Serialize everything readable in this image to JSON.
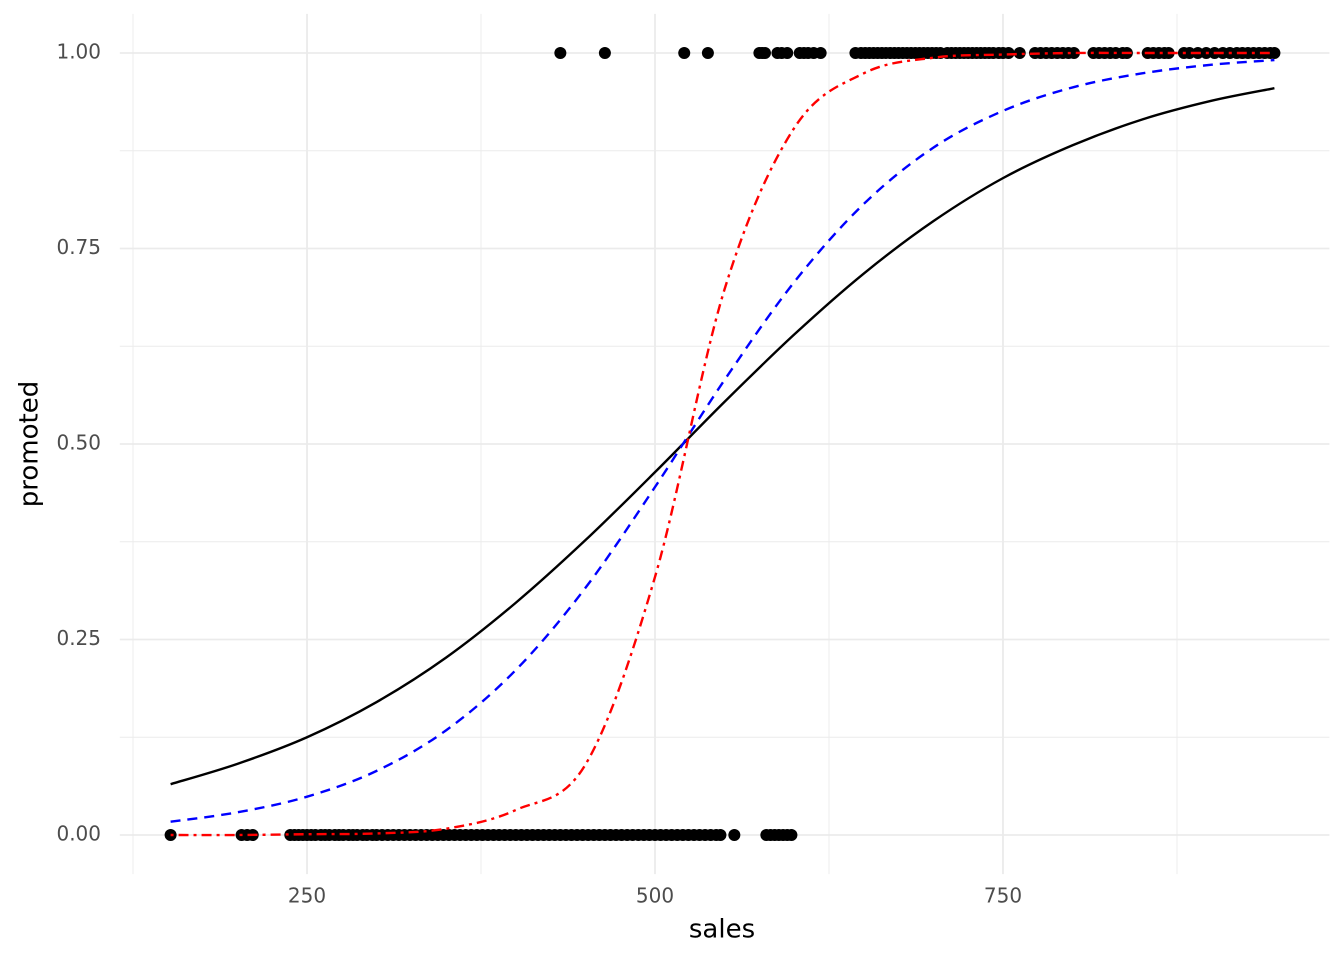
{
  "chart_data": {
    "type": "logistic",
    "x_label": "sales",
    "y_label": "promoted",
    "xlim": [
      115.5,
      984.5
    ],
    "ylim": [
      -0.05,
      1.05
    ],
    "xticks": [
      250,
      500,
      750
    ],
    "xminor": [
      125,
      375,
      625,
      875
    ],
    "yticks": [
      {
        "value": 0,
        "label": "0.00"
      },
      {
        "value": 0.25,
        "label": "0.25"
      },
      {
        "value": 0.5,
        "label": "0.50"
      },
      {
        "value": 0.75,
        "label": "0.75"
      },
      {
        "value": 1,
        "label": "1.00"
      }
    ],
    "yminor": [
      0.125,
      0.375,
      0.625,
      0.875
    ],
    "grid": true,
    "series": [
      {
        "type": "scatter",
        "color": "#000000",
        "x": [
          432,
          464,
          521,
          538,
          575,
          577,
          579,
          588,
          591,
          595,
          604,
          607,
          610,
          614,
          619,
          644,
          648,
          651,
          654,
          657,
          660,
          663,
          666,
          669,
          672,
          675,
          678,
          681,
          684,
          687,
          690,
          693,
          696,
          699,
          702,
          705,
          710,
          713,
          716,
          719,
          722,
          725,
          728,
          731,
          734,
          737,
          740,
          743,
          747,
          750,
          754,
          762,
          773,
          777,
          781,
          785,
          789,
          793,
          797,
          801,
          815,
          819,
          823,
          827,
          831,
          836,
          839,
          854,
          858,
          862,
          866,
          869,
          880,
          884,
          890,
          896,
          902,
          908,
          913,
          918,
          922,
          926,
          930,
          934,
          938,
          942,
          945
        ],
        "y": [
          1,
          1,
          1,
          1,
          1,
          1,
          1,
          1,
          1,
          1,
          1,
          1,
          1,
          1,
          1,
          1,
          1,
          1,
          1,
          1,
          1,
          1,
          1,
          1,
          1,
          1,
          1,
          1,
          1,
          1,
          1,
          1,
          1,
          1,
          1,
          1,
          1,
          1,
          1,
          1,
          1,
          1,
          1,
          1,
          1,
          1,
          1,
          1,
          1,
          1,
          1,
          1,
          1,
          1,
          1,
          1,
          1,
          1,
          1,
          1,
          1,
          1,
          1,
          1,
          1,
          1,
          1,
          1,
          1,
          1,
          1,
          1,
          1,
          1,
          1,
          1,
          1,
          1,
          1,
          1,
          1,
          1,
          1,
          1,
          1,
          1,
          1
        ]
      },
      {
        "type": "scatter",
        "color": "#000000",
        "x": [
          152,
          203,
          207,
          211,
          238,
          241,
          244,
          247,
          250,
          253,
          256,
          260,
          263,
          266,
          270,
          273,
          276,
          280,
          283,
          286,
          290,
          293,
          297,
          300,
          304,
          308,
          312,
          316,
          320,
          324,
          328,
          332,
          336,
          340,
          344,
          348,
          352,
          356,
          360,
          364,
          368,
          372,
          376,
          380,
          384,
          388,
          392,
          396,
          400,
          404,
          408,
          412,
          416,
          420,
          424,
          428,
          432,
          436,
          440,
          444,
          448,
          452,
          456,
          460,
          464,
          468,
          472,
          476,
          480,
          484,
          488,
          492,
          496,
          500,
          504,
          508,
          512,
          516,
          520,
          524,
          528,
          532,
          536,
          540,
          544,
          547,
          557,
          580,
          583,
          586,
          589,
          592,
          595,
          598
        ],
        "y": [
          0,
          0,
          0,
          0,
          0,
          0,
          0,
          0,
          0,
          0,
          0,
          0,
          0,
          0,
          0,
          0,
          0,
          0,
          0,
          0,
          0,
          0,
          0,
          0,
          0,
          0,
          0,
          0,
          0,
          0,
          0,
          0,
          0,
          0,
          0,
          0,
          0,
          0,
          0,
          0,
          0,
          0,
          0,
          0,
          0,
          0,
          0,
          0,
          0,
          0,
          0,
          0,
          0,
          0,
          0,
          0,
          0,
          0,
          0,
          0,
          0,
          0,
          0,
          0,
          0,
          0,
          0,
          0,
          0,
          0,
          0,
          0,
          0,
          0,
          0,
          0,
          0,
          0,
          0,
          0,
          0,
          0,
          0,
          0,
          0,
          0,
          0,
          0,
          0,
          0,
          0,
          0,
          0,
          0
        ]
      },
      {
        "type": "line",
        "color": "#000000",
        "dash": "solid",
        "x": [
          152,
          200,
          250,
          300,
          350,
          400,
          450,
          500,
          550,
          600,
          650,
          700,
          750,
          800,
          850,
          900,
          945
        ],
        "y": [
          0.065,
          0.091,
          0.125,
          0.17,
          0.227,
          0.297,
          0.377,
          0.464,
          0.554,
          0.64,
          0.718,
          0.785,
          0.84,
          0.882,
          0.915,
          0.939,
          0.955
        ]
      },
      {
        "type": "line",
        "color": "#0000ff",
        "dash": "dashed",
        "x": [
          152,
          200,
          250,
          300,
          350,
          400,
          450,
          500,
          550,
          600,
          650,
          700,
          750,
          800,
          850,
          900,
          945
        ],
        "y": [
          0.017,
          0.029,
          0.049,
          0.082,
          0.134,
          0.211,
          0.316,
          0.445,
          0.582,
          0.707,
          0.807,
          0.879,
          0.926,
          0.956,
          0.974,
          0.985,
          0.991
        ]
      },
      {
        "type": "line",
        "color": "#ff0000",
        "dash": "dotdash",
        "x": [
          152,
          200,
          250,
          300,
          350,
          400,
          450,
          500,
          550,
          600,
          650,
          700,
          750,
          800,
          850,
          900,
          945
        ],
        "y": [
          0.0,
          0.0,
          0.001,
          0.002,
          0.008,
          0.032,
          0.09,
          0.33,
          0.698,
          0.904,
          0.974,
          0.994,
          0.998,
          1.0,
          1.0,
          1.0,
          1.0
        ]
      }
    ]
  }
}
